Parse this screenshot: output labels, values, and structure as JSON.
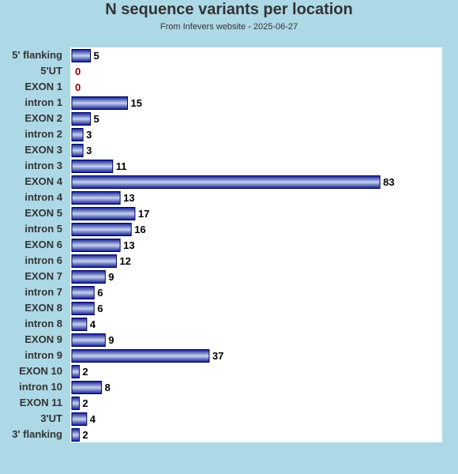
{
  "chart_data": {
    "type": "bar",
    "orientation": "horizontal",
    "title": "N sequence variants per location",
    "subtitle": "From Infevers website - 2025-06-27",
    "categories": [
      "5' flanking",
      "5'UT",
      "EXON 1",
      "intron 1",
      "EXON 2",
      "intron 2",
      "EXON 3",
      "intron 3",
      "EXON 4",
      "intron 4",
      "EXON 5",
      "intron 5",
      "EXON 6",
      "intron 6",
      "EXON 7",
      "intron 7",
      "EXON 8",
      "intron 8",
      "EXON 9",
      "intron 9",
      "EXON 10",
      "intron 10",
      "EXON 11",
      "3'UT",
      "3' flanking"
    ],
    "values": [
      5,
      0,
      0,
      15,
      5,
      3,
      3,
      11,
      83,
      13,
      17,
      16,
      13,
      12,
      9,
      6,
      6,
      4,
      9,
      37,
      2,
      8,
      2,
      4,
      2
    ],
    "xlim": [
      0,
      100
    ],
    "grid": false,
    "legend": "none",
    "colors": {
      "background": "#add8e6",
      "plot_area": "#ffffff",
      "bar_edge": "#000066",
      "bar_dark": "#0a1a8a",
      "bar_light": "#c8d2f2",
      "zero_label": "#8b0000"
    }
  }
}
